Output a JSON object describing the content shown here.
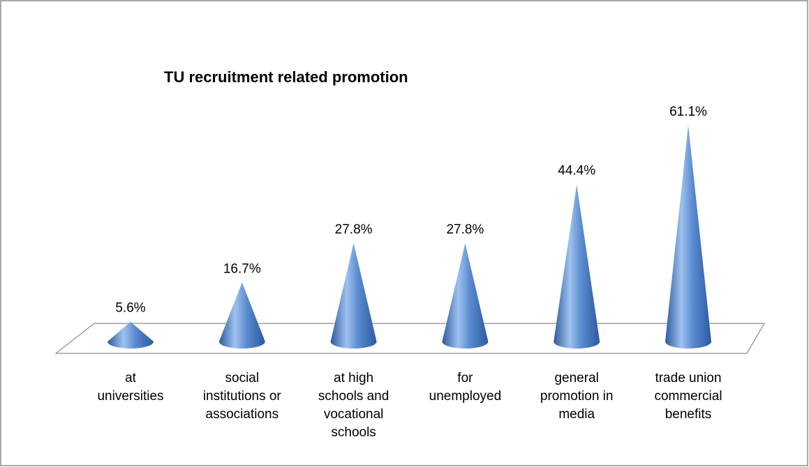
{
  "chart_data": {
    "type": "cone",
    "title": "TU recruitment related promotion",
    "categories": [
      "at universities",
      "social institutions or associations",
      "at high schools and vocational schools",
      "for unemployed",
      "general promotion in media",
      "trade union commercial benefits"
    ],
    "values": [
      5.6,
      16.7,
      27.8,
      27.8,
      44.4,
      61.1
    ],
    "value_labels": [
      "5.6%",
      "16.7%",
      "27.8%",
      "27.8%",
      "44.4%",
      "61.1%"
    ],
    "color": "#4a7cc4"
  }
}
